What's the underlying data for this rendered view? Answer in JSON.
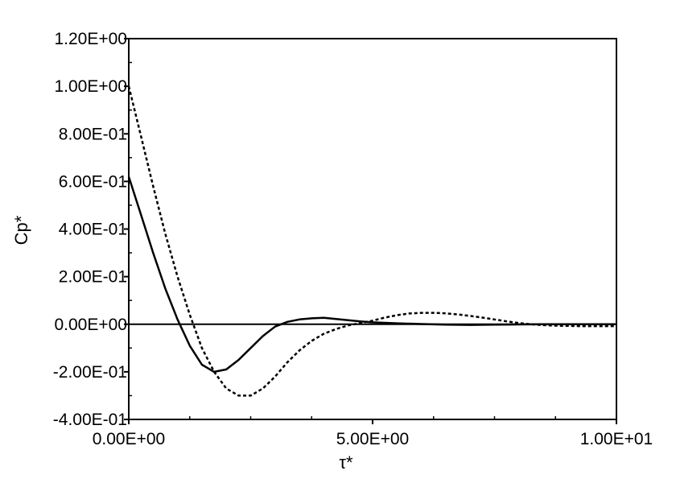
{
  "chart_data": {
    "type": "line",
    "xlabel": "τ*",
    "ylabel": "Cp*",
    "xlim": [
      0,
      10
    ],
    "ylim": [
      -0.4,
      1.2
    ],
    "x_ticks": [
      0,
      5,
      10
    ],
    "x_tick_labels": [
      "0.00E+00",
      "5.00E+00",
      "1.00E+01"
    ],
    "y_ticks": [
      1.2,
      1.0,
      0.8,
      0.6,
      0.4,
      0.2,
      0.0,
      -0.2,
      -0.4
    ],
    "y_tick_labels": [
      "1.20E+00",
      "1.00E+00",
      "8.00E-01",
      "6.00E-01",
      "4.00E-01",
      "2.00E-01",
      "0.00E+00",
      "-2.00E-01",
      "-4.00E-01"
    ],
    "grid": false,
    "legend": false,
    "zero_line": true,
    "series": [
      {
        "style": "solid",
        "color": "#000000",
        "x": [
          0,
          0.25,
          0.5,
          0.75,
          1.0,
          1.25,
          1.5,
          1.75,
          2.0,
          2.25,
          2.5,
          2.75,
          3.0,
          3.25,
          3.5,
          3.75,
          4.0,
          4.25,
          4.5,
          4.75,
          5.0,
          5.5,
          6.0,
          6.5,
          7.0,
          7.5,
          8.0,
          8.5,
          9.0,
          9.5,
          10.0
        ],
        "y": [
          0.62,
          0.46,
          0.3,
          0.15,
          0.02,
          -0.09,
          -0.17,
          -0.2,
          -0.19,
          -0.15,
          -0.1,
          -0.05,
          -0.01,
          0.01,
          0.02,
          0.025,
          0.027,
          0.022,
          0.017,
          0.012,
          0.008,
          0.004,
          0.001,
          -0.002,
          -0.003,
          -0.002,
          -0.001,
          0.0,
          0.0,
          0.0,
          0.0
        ]
      },
      {
        "style": "dashed",
        "color": "#000000",
        "x": [
          0,
          0.25,
          0.5,
          0.75,
          1.0,
          1.25,
          1.5,
          1.75,
          2.0,
          2.25,
          2.5,
          2.75,
          3.0,
          3.25,
          3.5,
          3.75,
          4.0,
          4.25,
          4.5,
          4.75,
          5.0,
          5.25,
          5.5,
          5.75,
          6.0,
          6.25,
          6.5,
          6.75,
          7.0,
          7.25,
          7.5,
          7.75,
          8.0,
          8.25,
          8.5,
          8.75,
          9.0,
          9.25,
          9.5,
          9.75,
          10.0
        ],
        "y": [
          1.0,
          0.79,
          0.58,
          0.38,
          0.2,
          0.04,
          -0.1,
          -0.2,
          -0.27,
          -0.3,
          -0.3,
          -0.27,
          -0.22,
          -0.16,
          -0.11,
          -0.07,
          -0.04,
          -0.02,
          -0.005,
          0.005,
          0.015,
          0.028,
          0.038,
          0.045,
          0.048,
          0.048,
          0.046,
          0.041,
          0.035,
          0.028,
          0.02,
          0.012,
          0.005,
          0.0,
          -0.004,
          -0.006,
          -0.007,
          -0.008,
          -0.008,
          -0.008,
          -0.008
        ]
      }
    ]
  }
}
